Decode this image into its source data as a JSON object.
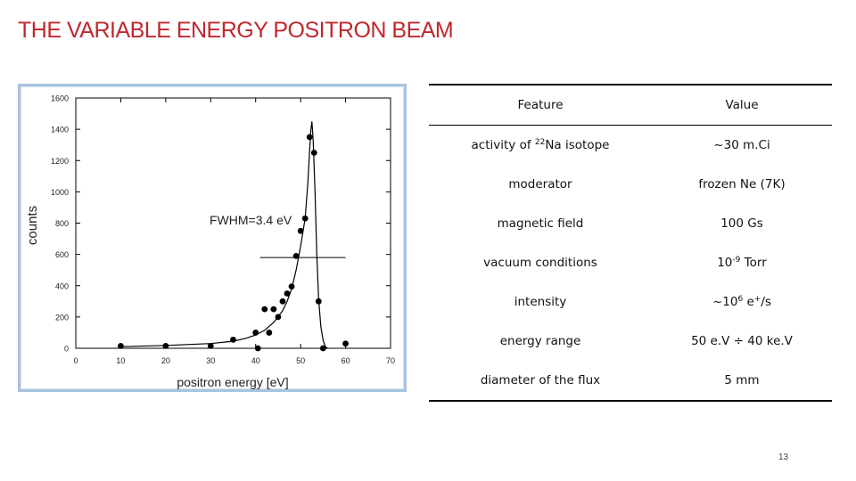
{
  "slide": {
    "title": "THE VARIABLE ENERGY POSITRON BEAM",
    "page_number": "13"
  },
  "figure": {
    "annotation": "FWHM=3.4 eV"
  },
  "chart_data": {
    "type": "scatter",
    "title": "",
    "xlabel": "positron energy [eV]",
    "ylabel": "counts",
    "xlim": [
      0,
      70
    ],
    "ylim": [
      0,
      1600
    ],
    "xticks": [
      "0",
      "10",
      "20",
      "30",
      "40",
      "50",
      "60",
      "70"
    ],
    "yticks": [
      "0",
      "200",
      "400",
      "600",
      "800",
      "1000",
      "1200",
      "1400",
      "1600"
    ],
    "grid": false,
    "points": [
      {
        "x": 10,
        "y": 15
      },
      {
        "x": 20,
        "y": 15
      },
      {
        "x": 30,
        "y": 15
      },
      {
        "x": 35,
        "y": 55
      },
      {
        "x": 40,
        "y": 100
      },
      {
        "x": 40.5,
        "y": 0
      },
      {
        "x": 42,
        "y": 250
      },
      {
        "x": 43,
        "y": 100
      },
      {
        "x": 44,
        "y": 250
      },
      {
        "x": 45,
        "y": 200
      },
      {
        "x": 46,
        "y": 300
      },
      {
        "x": 47,
        "y": 350
      },
      {
        "x": 48,
        "y": 395
      },
      {
        "x": 49,
        "y": 590
      },
      {
        "x": 50,
        "y": 750
      },
      {
        "x": 51,
        "y": 830
      },
      {
        "x": 52,
        "y": 1350
      },
      {
        "x": 53,
        "y": 1250
      },
      {
        "x": 54,
        "y": 300
      },
      {
        "x": 55,
        "y": 0
      },
      {
        "x": 60,
        "y": 30
      }
    ],
    "fit_curve": [
      [
        10,
        10
      ],
      [
        20,
        18
      ],
      [
        30,
        30
      ],
      [
        35,
        45
      ],
      [
        38,
        65
      ],
      [
        40,
        85
      ],
      [
        42,
        115
      ],
      [
        44,
        165
      ],
      [
        46,
        240
      ],
      [
        47,
        300
      ],
      [
        48,
        380
      ],
      [
        49,
        500
      ],
      [
        50,
        650
      ],
      [
        51,
        830
      ],
      [
        51.6,
        1050
      ],
      [
        52,
        1260
      ],
      [
        52.3,
        1400
      ],
      [
        52.5,
        1450
      ],
      [
        52.8,
        1320
      ],
      [
        53.2,
        1000
      ],
      [
        53.6,
        600
      ],
      [
        54,
        320
      ],
      [
        54.5,
        140
      ],
      [
        55,
        50
      ],
      [
        55.5,
        10
      ],
      [
        56,
        0
      ]
    ],
    "fwhm_line": {
      "x1": 41,
      "x2": 60,
      "y": 580
    }
  },
  "table": {
    "headers": [
      "Feature",
      "Value"
    ],
    "rows": [
      {
        "feature": {
          "pre": "activity of ",
          "sup": "22",
          "post": "Na isotope"
        },
        "value": {
          "pre": "~30 m.Ci",
          "sup": "",
          "post": ""
        }
      },
      {
        "feature": {
          "pre": "moderator",
          "sup": "",
          "post": ""
        },
        "value": {
          "pre": "frozen Ne (7K)",
          "sup": "",
          "post": ""
        }
      },
      {
        "feature": {
          "pre": "magnetic field",
          "sup": "",
          "post": ""
        },
        "value": {
          "pre": "100 Gs",
          "sup": "",
          "post": ""
        }
      },
      {
        "feature": {
          "pre": "vacuum conditions",
          "sup": "",
          "post": ""
        },
        "value": {
          "pre": "10",
          "sup": "-9",
          "post": " Torr"
        }
      },
      {
        "feature": {
          "pre": "intensity",
          "sup": "",
          "post": ""
        },
        "value": {
          "pre": "~10",
          "sup": "6",
          "post": " e",
          "sup2": "+",
          "post2": "/s"
        }
      },
      {
        "feature": {
          "pre": "energy range",
          "sup": "",
          "post": ""
        },
        "value": {
          "pre": "50 e.V ÷ 40 ke.V",
          "sup": "",
          "post": ""
        }
      },
      {
        "feature": {
          "pre": "diameter of the flux",
          "sup": "",
          "post": ""
        },
        "value": {
          "pre": "5 mm",
          "sup": "",
          "post": ""
        }
      }
    ]
  }
}
